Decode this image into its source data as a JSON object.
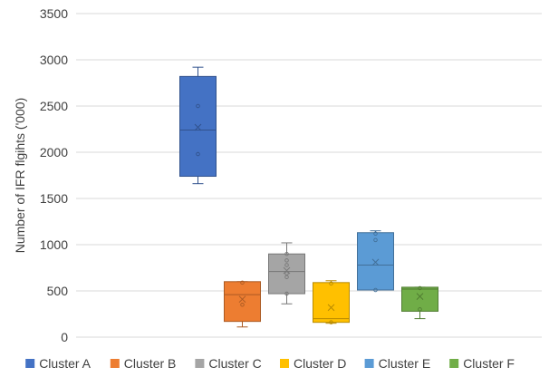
{
  "chart_data": {
    "type": "box",
    "title": "",
    "xlabel": "",
    "ylabel": "Number of IFR flgihts ('000)",
    "ylim": [
      0,
      3500
    ],
    "yticks": [
      0,
      500,
      1000,
      1500,
      2000,
      2500,
      3000,
      3500
    ],
    "grid": true,
    "legend_position": "bottom",
    "series": [
      {
        "name": "Cluster A",
        "color": "#4472C4",
        "min": 1660,
        "q1": 1740,
        "median": 2240,
        "q3": 2820,
        "max": 2920,
        "mean": 2270,
        "points": [
          1980,
          2500
        ]
      },
      {
        "name": "Cluster B",
        "color": "#ED7D31",
        "min": 110,
        "q1": 170,
        "median": 460,
        "q3": 600,
        "max": 600,
        "mean": 410,
        "points": [
          350,
          590
        ]
      },
      {
        "name": "Cluster C",
        "color": "#A5A5A5",
        "min": 360,
        "q1": 470,
        "median": 710,
        "q3": 900,
        "max": 1020,
        "mean": 720,
        "points": [
          470,
          650,
          690,
          780,
          830,
          900
        ]
      },
      {
        "name": "Cluster D",
        "color": "#FFC000",
        "min": 150,
        "q1": 160,
        "median": 200,
        "q3": 590,
        "max": 610,
        "mean": 320,
        "points": [
          160,
          580
        ]
      },
      {
        "name": "Cluster E",
        "color": "#5B9BD5",
        "min": 510,
        "q1": 510,
        "median": 780,
        "q3": 1130,
        "max": 1150,
        "mean": 810,
        "points": [
          510,
          1050,
          1120
        ]
      },
      {
        "name": "Cluster F",
        "color": "#70AD47",
        "min": 200,
        "q1": 280,
        "median": 520,
        "q3": 540,
        "max": 540,
        "mean": 440,
        "points": [
          300,
          530
        ]
      }
    ]
  }
}
